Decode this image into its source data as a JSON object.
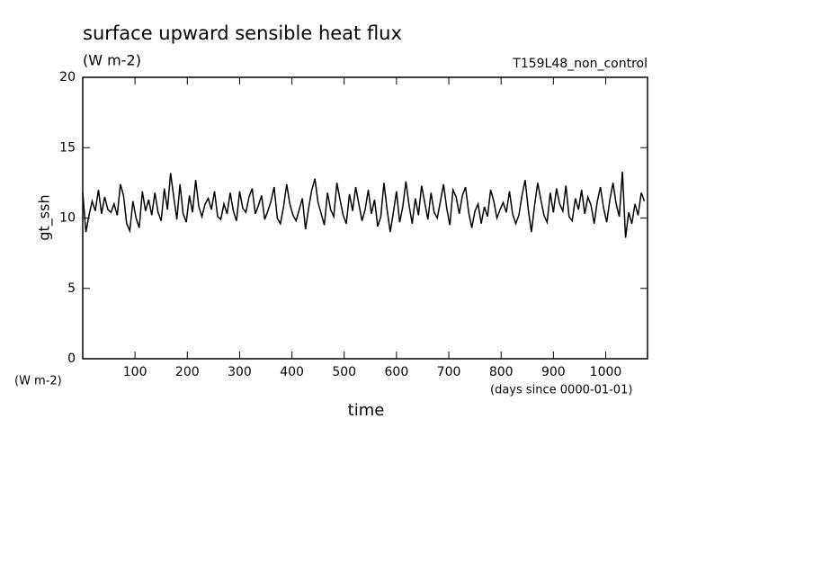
{
  "chart_data": {
    "type": "line",
    "title": "surface upward sensible heat flux",
    "subtitle": "(W m-2)",
    "experiment": "T159L48_non_control",
    "y_label": "gt_ssh",
    "y_unit": "(W m-2)",
    "x_label": "time",
    "x_unit": "(days since 0000-01-01)",
    "xlim": [
      0,
      1080
    ],
    "ylim": [
      0,
      20
    ],
    "xticks": [
      100,
      200,
      300,
      400,
      500,
      600,
      700,
      800,
      900,
      1000
    ],
    "yticks": [
      0,
      5,
      10,
      15,
      20
    ],
    "x": [
      0,
      6,
      12,
      18,
      24,
      30,
      36,
      42,
      48,
      54,
      60,
      66,
      72,
      78,
      84,
      90,
      96,
      102,
      108,
      114,
      120,
      126,
      132,
      138,
      144,
      150,
      156,
      162,
      168,
      174,
      180,
      186,
      192,
      198,
      204,
      210,
      216,
      222,
      228,
      234,
      240,
      246,
      252,
      258,
      264,
      270,
      276,
      282,
      288,
      294,
      300,
      306,
      312,
      318,
      324,
      330,
      336,
      342,
      348,
      354,
      360,
      366,
      372,
      378,
      384,
      390,
      396,
      402,
      408,
      414,
      420,
      426,
      432,
      438,
      444,
      450,
      456,
      462,
      468,
      474,
      480,
      486,
      492,
      498,
      504,
      510,
      516,
      522,
      528,
      534,
      540,
      546,
      552,
      558,
      564,
      570,
      576,
      582,
      588,
      594,
      600,
      606,
      612,
      618,
      624,
      630,
      636,
      642,
      648,
      654,
      660,
      666,
      672,
      678,
      684,
      690,
      696,
      702,
      708,
      714,
      720,
      726,
      732,
      738,
      744,
      750,
      756,
      762,
      768,
      774,
      780,
      786,
      792,
      798,
      804,
      810,
      816,
      822,
      828,
      834,
      840,
      846,
      852,
      858,
      864,
      870,
      876,
      882,
      888,
      894,
      900,
      906,
      912,
      918,
      924,
      930,
      936,
      942,
      948,
      954,
      960,
      966,
      972,
      978,
      984,
      990,
      996,
      1002,
      1008,
      1014,
      1020,
      1026,
      1032,
      1038,
      1044,
      1050,
      1056,
      1062,
      1068,
      1074
    ],
    "series": [
      {
        "color": "#000000",
        "values": [
          11.8,
          9.0,
          10.2,
          11.2,
          10.5,
          12.0,
          10.3,
          11.5,
          10.6,
          10.4,
          11.0,
          10.2,
          12.4,
          11.6,
          9.6,
          9.1,
          11.2,
          10.0,
          9.3,
          11.9,
          10.5,
          11.3,
          10.2,
          11.8,
          10.4,
          9.8,
          12.1,
          10.6,
          13.2,
          11.5,
          9.9,
          12.4,
          10.3,
          9.7,
          11.6,
          10.4,
          12.7,
          10.8,
          10.1,
          11.0,
          11.4,
          10.6,
          11.9,
          10.1,
          9.9,
          11.0,
          10.3,
          11.8,
          10.5,
          9.8,
          11.9,
          10.7,
          10.4,
          11.5,
          12.1,
          10.3,
          10.9,
          11.6,
          9.9,
          10.5,
          11.2,
          12.2,
          10.0,
          9.6,
          10.8,
          12.4,
          11.0,
          10.2,
          9.8,
          10.6,
          11.4,
          9.2,
          10.7,
          12.0,
          12.8,
          11.1,
          10.3,
          9.5,
          11.8,
          10.6,
          10.1,
          12.5,
          11.3,
          10.2,
          9.6,
          11.7,
          10.5,
          12.2,
          11.0,
          9.8,
          10.6,
          12.0,
          10.3,
          11.3,
          9.4,
          10.1,
          12.5,
          10.6,
          9.0,
          10.4,
          11.9,
          9.7,
          10.8,
          12.6,
          10.9,
          9.6,
          11.4,
          10.2,
          12.3,
          11.1,
          9.9,
          11.8,
          10.4,
          10.0,
          11.2,
          12.4,
          10.7,
          9.5,
          12.0,
          11.5,
          10.3,
          11.6,
          12.2,
          10.4,
          9.3,
          10.5,
          11.0,
          9.6,
          10.8,
          10.1,
          12.0,
          11.2,
          10.0,
          10.6,
          11.1,
          10.4,
          11.9,
          10.3,
          9.6,
          10.2,
          11.6,
          12.7,
          10.6,
          9.0,
          10.9,
          12.5,
          11.3,
          10.2,
          9.7,
          11.8,
          10.4,
          12.1,
          11.0,
          10.5,
          12.3,
          10.1,
          9.8,
          11.4,
          10.6,
          12.0,
          10.3,
          11.5,
          10.9,
          9.6,
          11.2,
          12.2,
          10.7,
          9.7,
          11.3,
          12.5,
          11.0,
          10.1,
          13.3,
          8.6,
          10.4,
          9.6,
          11.0,
          10.2,
          11.8,
          11.2
        ]
      }
    ]
  }
}
